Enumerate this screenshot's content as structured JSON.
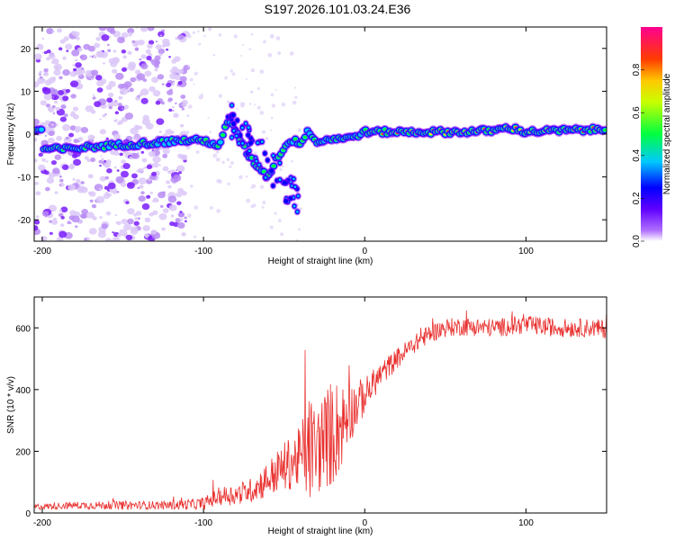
{
  "title": "S197.2026.101.03.24.E36",
  "colors": {
    "snr_line": "#e8302e",
    "axis": "#000000",
    "ridge_cmap": [
      "#8a00ff",
      "#0000ff",
      "#00c8ff",
      "#00ff40",
      "#ffff00",
      "#ff3030"
    ]
  },
  "chart_data": [
    {
      "id": "spectrogram",
      "type": "heatmap",
      "title": "",
      "xlabel": "Height of straight line (km)",
      "ylabel": "Frequency (Hz)",
      "xlim": [
        -205,
        150
      ],
      "ylim": [
        -25,
        25
      ],
      "xticks": [
        -200,
        -100,
        0,
        100
      ],
      "yticks": [
        -20,
        -10,
        0,
        10,
        20
      ],
      "colorbar": {
        "label": "Normalized spectral amplitude",
        "range": [
          0.0,
          1.0
        ],
        "ticks": [
          "0.0",
          "0.2",
          "0.4",
          "0.6",
          "0.8"
        ]
      },
      "ridge": [
        [
          -200,
          -3.5
        ],
        [
          -185,
          -3.5
        ],
        [
          -170,
          -3
        ],
        [
          -150,
          -2.5
        ],
        [
          -130,
          -2
        ],
        [
          -115,
          -1.5
        ],
        [
          -100,
          -1.5
        ],
        [
          -95,
          -2
        ],
        [
          -90,
          -3
        ],
        [
          -85,
          3
        ],
        [
          -80,
          1
        ],
        [
          -75,
          -3
        ],
        [
          -70,
          -6
        ],
        [
          -65,
          -8
        ],
        [
          -60,
          -10
        ],
        [
          -55,
          -6
        ],
        [
          -50,
          -3
        ],
        [
          -45,
          -1.5
        ],
        [
          -40,
          -2
        ],
        [
          -35,
          1
        ],
        [
          -30,
          -2
        ],
        [
          -20,
          -1
        ],
        [
          -10,
          -1
        ],
        [
          0,
          0.5
        ],
        [
          20,
          0.5
        ],
        [
          40,
          0.5
        ],
        [
          60,
          0.5
        ],
        [
          80,
          0.8
        ],
        [
          90,
          1.5
        ],
        [
          100,
          0.5
        ],
        [
          120,
          0.8
        ],
        [
          140,
          1
        ]
      ]
    },
    {
      "id": "snr",
      "type": "line",
      "title": "",
      "xlabel": "Height of straight line (km)",
      "ylabel": "SNR (10 * v/v)",
      "xlim": [
        -205,
        150
      ],
      "ylim": [
        0,
        700
      ],
      "xticks": [
        -200,
        -100,
        0,
        100
      ],
      "yticks": [
        0,
        200,
        400,
        600
      ],
      "series": [
        {
          "name": "SNR",
          "x": [
            -205,
            -180,
            -150,
            -120,
            -100,
            -90,
            -80,
            -70,
            -60,
            -50,
            -40,
            -35,
            -30,
            -25,
            -20,
            -15,
            -10,
            -5,
            0,
            10,
            20,
            30,
            40,
            50,
            60,
            80,
            100,
            120,
            140,
            150
          ],
          "mean": [
            20,
            25,
            25,
            25,
            30,
            55,
            60,
            75,
            110,
            150,
            180,
            210,
            200,
            240,
            260,
            280,
            320,
            350,
            380,
            450,
            500,
            545,
            580,
            600,
            605,
            600,
            610,
            600,
            600,
            595
          ],
          "noise": [
            10,
            12,
            14,
            14,
            20,
            30,
            35,
            40,
            60,
            80,
            100,
            180,
            150,
            160,
            180,
            150,
            100,
            80,
            60,
            40,
            35,
            30,
            30,
            30,
            30,
            30,
            30,
            30,
            30,
            30
          ]
        }
      ]
    }
  ]
}
